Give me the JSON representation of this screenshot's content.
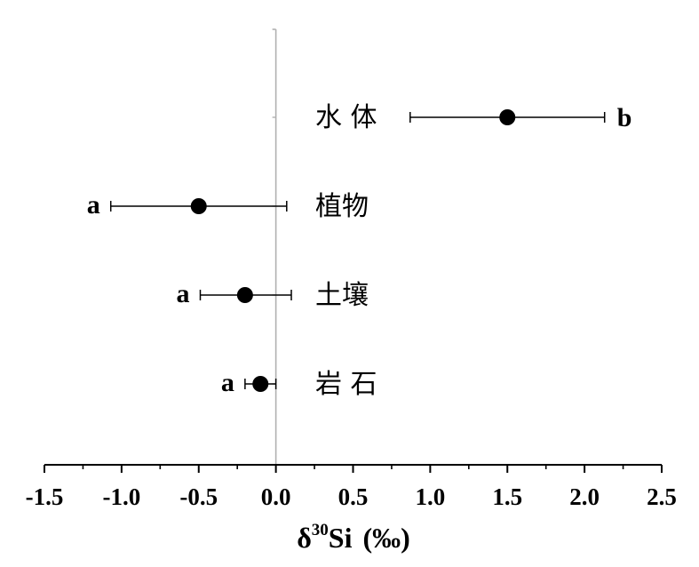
{
  "chart_data": {
    "type": "scatter",
    "xlim": [
      -1.5,
      2.5
    ],
    "x_ticks": [
      "-1.5",
      "-1.0",
      "-0.5",
      "0.0",
      "0.5",
      "1.0",
      "1.5",
      "2.0",
      "2.5"
    ],
    "x_tick_values": [
      -1.5,
      -1.0,
      -0.5,
      0.0,
      0.5,
      1.0,
      1.5,
      2.0,
      2.5
    ],
    "xlabel": {
      "delta": "δ",
      "superscript": "30",
      "element": "Si",
      "unit": "(‰)"
    },
    "grid": false,
    "reference_line_x": 0,
    "points": [
      {
        "category": "水 体",
        "x": 1.5,
        "xerr_low": 0.87,
        "xerr_high": 2.13,
        "group": "b"
      },
      {
        "category": "植物",
        "x": -0.5,
        "xerr_low": -1.07,
        "xerr_high": 0.07,
        "group": "a"
      },
      {
        "category": "土壤",
        "x": -0.2,
        "xerr_low": -0.49,
        "xerr_high": 0.1,
        "group": "a"
      },
      {
        "category": "岩 石",
        "x": -0.1,
        "xerr_low": -0.2,
        "xerr_high": 0.0,
        "group": "a"
      }
    ]
  }
}
